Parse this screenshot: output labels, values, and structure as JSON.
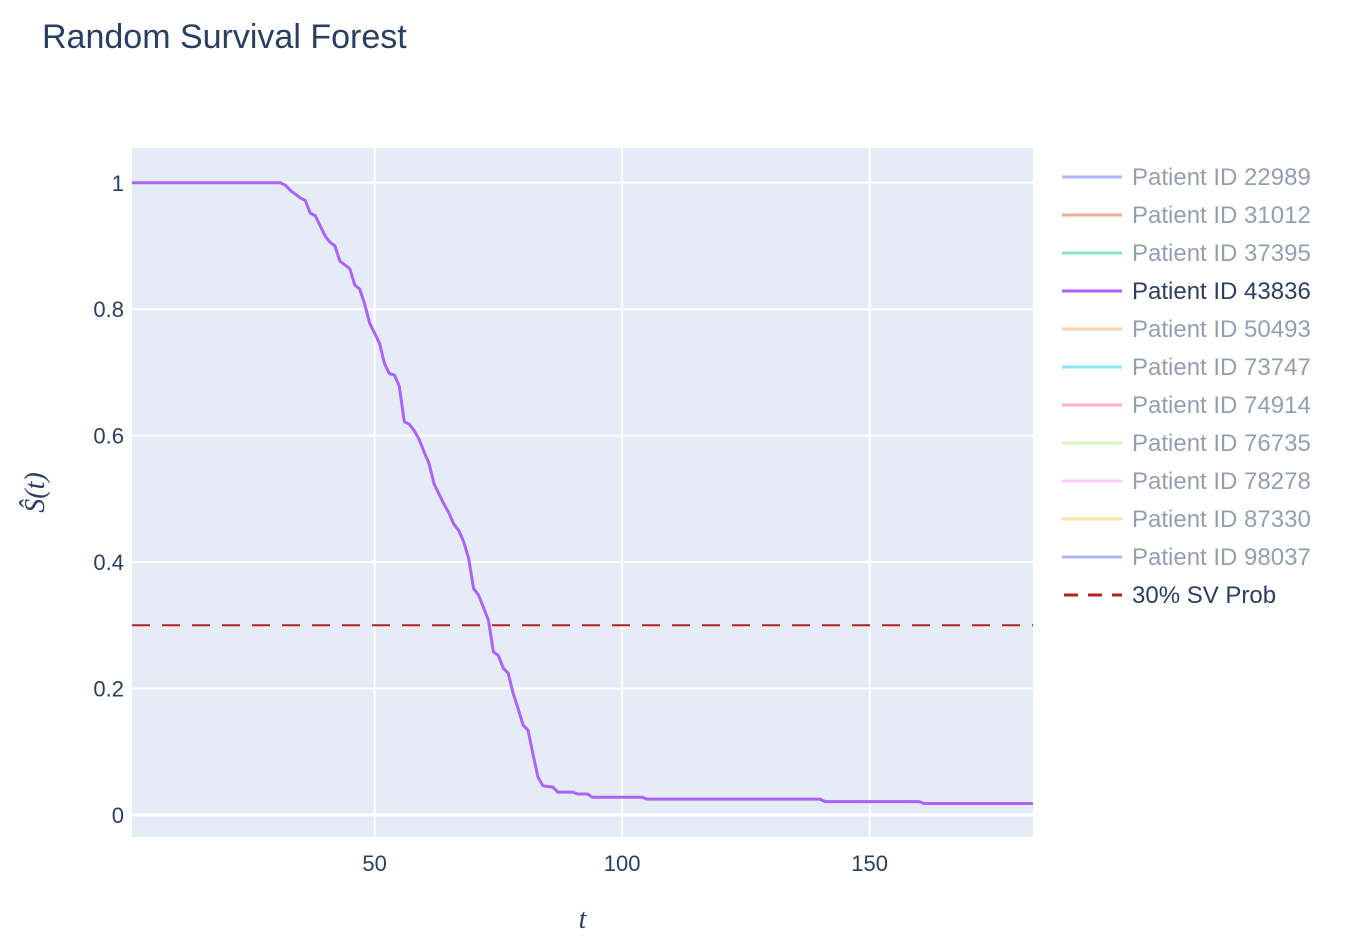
{
  "chart_data": {
    "type": "line",
    "title": "Random Survival Forest",
    "xlabel": "t",
    "ylabel": "Ŝ(t)",
    "xlim": [
      1,
      183
    ],
    "ylim": [
      -0.035,
      1.055
    ],
    "xticks": [
      50,
      100,
      150
    ],
    "yticks": [
      0,
      0.2,
      0.4,
      0.6,
      0.8,
      1
    ],
    "ytick_labels": [
      "0",
      "0.2",
      "0.4",
      "0.6",
      "0.8",
      "1"
    ],
    "grid": true,
    "background": "#e5ecf6",
    "legend_position": "right",
    "series": [
      {
        "name": "Patient ID 22989",
        "color": "#636efa",
        "visible": "legendonly",
        "x": [],
        "y": []
      },
      {
        "name": "Patient ID 31012",
        "color": "#ef553b",
        "visible": "legendonly",
        "x": [],
        "y": []
      },
      {
        "name": "Patient ID 37395",
        "color": "#00cc96",
        "visible": "legendonly",
        "x": [],
        "y": []
      },
      {
        "name": "Patient ID 43836",
        "color": "#ab63fa",
        "visible": true,
        "x": [
          1,
          31,
          32,
          33,
          35,
          36,
          37,
          38,
          39,
          40,
          41,
          42,
          43,
          44,
          45,
          46,
          47,
          48,
          49,
          50,
          51,
          52,
          53,
          54,
          55,
          56,
          57,
          58,
          59,
          60,
          61,
          62,
          63,
          64,
          65,
          66,
          67,
          68,
          69,
          70,
          71,
          72,
          73,
          74,
          75,
          76,
          77,
          78,
          79,
          80,
          81,
          82,
          83,
          84,
          86,
          87,
          90,
          91,
          93,
          94,
          104,
          105,
          140,
          141,
          160,
          161,
          183
        ],
        "y": [
          1.0,
          1.0,
          0.996,
          0.988,
          0.976,
          0.972,
          0.952,
          0.948,
          0.932,
          0.916,
          0.906,
          0.9,
          0.876,
          0.87,
          0.864,
          0.838,
          0.832,
          0.808,
          0.778,
          0.762,
          0.746,
          0.714,
          0.698,
          0.696,
          0.678,
          0.622,
          0.618,
          0.608,
          0.594,
          0.574,
          0.556,
          0.524,
          0.508,
          0.492,
          0.478,
          0.46,
          0.45,
          0.432,
          0.406,
          0.358,
          0.348,
          0.328,
          0.308,
          0.258,
          0.252,
          0.232,
          0.224,
          0.192,
          0.168,
          0.142,
          0.134,
          0.096,
          0.06,
          0.046,
          0.044,
          0.036,
          0.036,
          0.033,
          0.033,
          0.028,
          0.028,
          0.025,
          0.025,
          0.021,
          0.021,
          0.018,
          0.018
        ]
      },
      {
        "name": "Patient ID 50493",
        "color": "#ffa15a",
        "visible": "legendonly",
        "x": [],
        "y": []
      },
      {
        "name": "Patient ID 73747",
        "color": "#19d3f3",
        "visible": "legendonly",
        "x": [],
        "y": []
      },
      {
        "name": "Patient ID 74914",
        "color": "#ff6692",
        "visible": "legendonly",
        "x": [],
        "y": []
      },
      {
        "name": "Patient ID 76735",
        "color": "#b6e880",
        "visible": "legendonly",
        "x": [],
        "y": []
      },
      {
        "name": "Patient ID 78278",
        "color": "#ff97ff",
        "visible": "legendonly",
        "x": [],
        "y": []
      },
      {
        "name": "Patient ID 87330",
        "color": "#fecb52",
        "visible": "legendonly",
        "x": [],
        "y": []
      },
      {
        "name": "Patient ID 98037",
        "color": "#636efa",
        "visible": "legendonly",
        "x": [],
        "y": []
      }
    ],
    "reference_line": {
      "name": "30% SV Prob",
      "y": 0.3,
      "color": "#b22222",
      "dash": "dashed"
    }
  }
}
